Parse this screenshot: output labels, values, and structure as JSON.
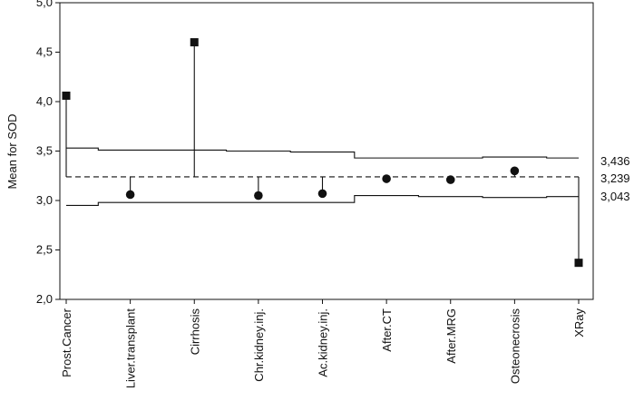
{
  "chart_data": {
    "type": "scatter",
    "subtype": "analysis-of-means",
    "ylabel": "Mean for SOD",
    "ylim": [
      2.0,
      5.0
    ],
    "yticks": [
      "2,0",
      "2,5",
      "3,0",
      "3,5",
      "4,0",
      "4,5",
      "5,0"
    ],
    "ytick_values": [
      2.0,
      2.5,
      3.0,
      3.5,
      4.0,
      4.5,
      5.0
    ],
    "categories": [
      "Prost.Cancer",
      "Liver.transplant",
      "Cirrhosis",
      "Chr.kidney.inj.",
      "Ac.kidney.inj.",
      "After.CT",
      "After.MRG",
      "Osteonecrosis",
      "XRay"
    ],
    "means": [
      4.06,
      3.06,
      4.6,
      3.05,
      3.07,
      3.22,
      3.21,
      3.3,
      2.37
    ],
    "out_of_limits": [
      true,
      false,
      true,
      false,
      false,
      false,
      false,
      false,
      true
    ],
    "center_line": 3.239,
    "upper_limits": [
      3.53,
      3.51,
      3.51,
      3.5,
      3.49,
      3.43,
      3.43,
      3.44,
      3.43
    ],
    "lower_limits": [
      2.95,
      2.98,
      2.98,
      2.98,
      2.98,
      3.05,
      3.04,
      3.03,
      3.04
    ],
    "limit_labels": {
      "upper": "3,436",
      "center": "3,239",
      "lower": "3,043"
    },
    "grid": false,
    "legend": "none"
  }
}
